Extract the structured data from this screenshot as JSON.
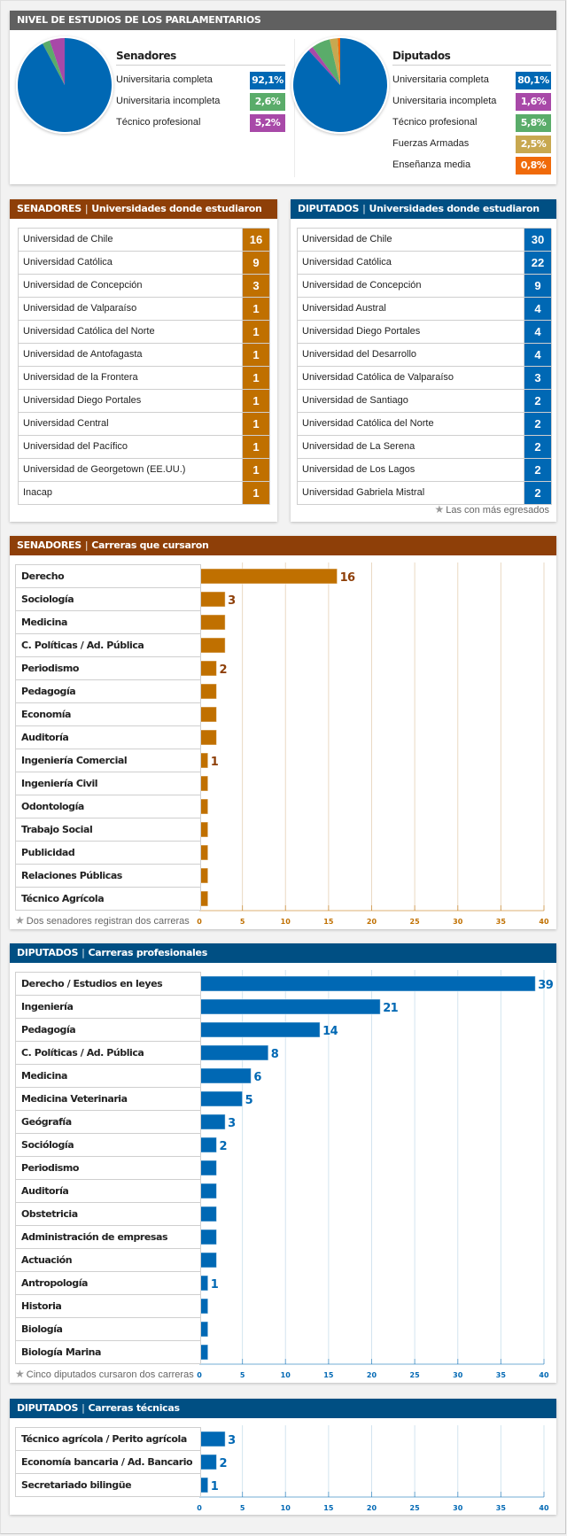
{
  "education_card": {
    "title": "NIVEL DE ESTUDIOS DE LOS PARLAMENTARIOS",
    "senadores": {
      "title": "Senadores",
      "items": [
        {
          "label": "Universitaria completa",
          "value": "92,1%",
          "pct": 92.1,
          "color": "#0068b4"
        },
        {
          "label": "Universitaria incompleta",
          "value": "2,6%",
          "pct": 2.6,
          "color": "#5aac6a"
        },
        {
          "label": "Técnico profesional",
          "value": "5,2%",
          "pct": 5.2,
          "color": "#a849a8"
        }
      ]
    },
    "diputados": {
      "title": "Diputados",
      "items": [
        {
          "label": "Universitaria completa",
          "value": "80,1%",
          "pct": 80.1,
          "color": "#0068b4"
        },
        {
          "label": "Universitaria incompleta",
          "value": "1,6%",
          "pct": 1.6,
          "color": "#a849a8"
        },
        {
          "label": "Técnico profesional",
          "value": "5,8%",
          "pct": 5.8,
          "color": "#5aac6a"
        },
        {
          "label": "Fuerzas Armadas",
          "value": "2,5%",
          "pct": 2.5,
          "color": "#c8a850"
        },
        {
          "label": "Enseñanza media",
          "value": "0,8%",
          "pct": 0.8,
          "color": "#f06a0a"
        }
      ]
    }
  },
  "senadores_universidades": {
    "title_prefix": "SENADORES",
    "separator": "|",
    "title": "Universidades donde estudiaron",
    "accent": "#c07000",
    "rows": [
      {
        "name": "Universidad de Chile",
        "count": "16"
      },
      {
        "name": "Universidad Católica",
        "count": "9"
      },
      {
        "name": "Universidad de Concepción",
        "count": "3"
      },
      {
        "name": "Universidad de Valparaíso",
        "count": "1"
      },
      {
        "name": "Universidad Católica del Norte",
        "count": "1"
      },
      {
        "name": "Universidad de Antofagasta",
        "count": "1"
      },
      {
        "name": "Universidad de la Frontera",
        "count": "1"
      },
      {
        "name": "Universidad Diego Portales",
        "count": "1"
      },
      {
        "name": "Universidad Central",
        "count": "1"
      },
      {
        "name": "Universidad del Pacífico",
        "count": "1"
      },
      {
        "name": "Universidad de Georgetown (EE.UU.)",
        "count": "1"
      },
      {
        "name": "Inacap",
        "count": "1"
      }
    ]
  },
  "diputados_universidades": {
    "title_prefix": "DIPUTADOS",
    "separator": "|",
    "title": "Universidades donde estudiaron",
    "accent": "#0068b4",
    "rows": [
      {
        "name": "Universidad de Chile",
        "count": "30"
      },
      {
        "name": "Universidad Católica",
        "count": "22"
      },
      {
        "name": "Universidad de Concepción",
        "count": "9"
      },
      {
        "name": "Universidad Austral",
        "count": "4"
      },
      {
        "name": "Universidad Diego Portales",
        "count": "4"
      },
      {
        "name": "Universidad del Desarrollo",
        "count": "4"
      },
      {
        "name": "Universidad Católica de Valparaíso",
        "count": "3"
      },
      {
        "name": "Universidad de Santiago",
        "count": "2"
      },
      {
        "name": "Universidad Católica del Norte",
        "count": "2"
      },
      {
        "name": "Universidad de La Serena",
        "count": "2"
      },
      {
        "name": "Universidad de Los Lagos",
        "count": "2"
      },
      {
        "name": "Universidad Gabriela Mistral",
        "count": "2"
      }
    ],
    "footnote": "Las con más egresados",
    "footnote_icon": "star-icon"
  },
  "chart_data": [
    {
      "type": "bar",
      "orientation": "horizontal",
      "title_prefix": "SENADORES",
      "separator": "|",
      "title": "Carreras que cursaron",
      "categories": [
        "Derecho",
        "Sociología",
        "Medicina",
        "C. Políticas / Ad. Pública",
        "Periodismo",
        "Pedagogía",
        "Economía",
        "Auditoría",
        "Ingeniería Comercial",
        "Ingeniería Civil",
        "Odontología",
        "Trabajo Social",
        "Publicidad",
        "Relaciones Públicas",
        "Técnico Agrícola"
      ],
      "values": [
        16,
        3,
        3,
        3,
        2,
        2,
        2,
        2,
        1,
        1,
        1,
        1,
        1,
        1,
        1
      ],
      "data_labels": [
        "16",
        "3",
        "",
        "",
        "2",
        "",
        "",
        "",
        "1",
        "",
        "",
        "",
        "",
        "",
        ""
      ],
      "xlim": [
        0,
        40
      ],
      "xticks": [
        "0",
        "5",
        "10",
        "15",
        "20",
        "25",
        "30",
        "35",
        "40"
      ],
      "grid": true,
      "bar_color": "#c07000",
      "label_color": "#8e3f08",
      "tick_color": "#c07000",
      "grid_color": "#ead9c3",
      "footnote": "Dos senadores registran dos carreras"
    },
    {
      "type": "bar",
      "orientation": "horizontal",
      "title_prefix": "DIPUTADOS",
      "separator": "|",
      "title": "Carreras profesionales",
      "categories": [
        "Derecho / Estudios en leyes",
        "Ingeniería",
        "Pedagogía",
        "C. Políticas / Ad. Pública",
        "Medicina",
        "Medicina Veterinaria",
        "Geógrafía",
        "Sociólogía",
        "Periodismo",
        "Auditoría",
        "Obstetricia",
        "Administración de empresas",
        "Actuación",
        "Antropología",
        "Historia",
        "Biología",
        "Biología Marina"
      ],
      "values": [
        39,
        21,
        14,
        8,
        6,
        5,
        3,
        2,
        2,
        2,
        2,
        2,
        2,
        1,
        1,
        1,
        1
      ],
      "data_labels": [
        "39",
        "21",
        "14",
        "8",
        "6",
        "5",
        "3",
        "2",
        "",
        "",
        "",
        "",
        "",
        "1",
        "",
        "",
        ""
      ],
      "xlim": [
        0,
        40
      ],
      "xticks": [
        "0",
        "5",
        "10",
        "15",
        "20",
        "25",
        "30",
        "35",
        "40"
      ],
      "grid": true,
      "bar_color": "#0068b4",
      "label_color": "#0068b4",
      "tick_color": "#0068b4",
      "grid_color": "#d3e4ef",
      "footnote": "Cinco diputados cursaron dos carreras"
    },
    {
      "type": "bar",
      "orientation": "horizontal",
      "title_prefix": "DIPUTADOS",
      "separator": "|",
      "title": "Carreras técnicas",
      "categories": [
        "Técnico agrícola / Perito agrícola",
        "Economía bancaria / Ad. Bancario",
        "Secretariado bilingüe"
      ],
      "values": [
        3,
        2,
        1
      ],
      "data_labels": [
        "3",
        "2",
        "1"
      ],
      "xlim": [
        0,
        40
      ],
      "xticks": [
        "0",
        "5",
        "10",
        "15",
        "20",
        "25",
        "30",
        "35",
        "40"
      ],
      "grid": true,
      "bar_color": "#0068b4",
      "label_color": "#0068b4",
      "tick_color": "#0068b4",
      "grid_color": "#d3e4ef",
      "footnote": ""
    }
  ]
}
